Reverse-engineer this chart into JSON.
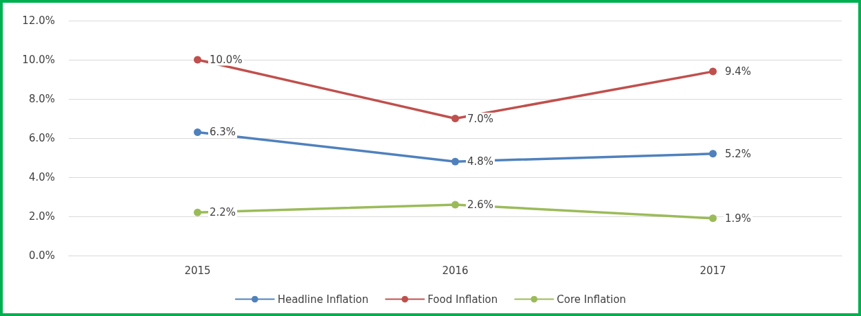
{
  "chart_data": {
    "type": "line",
    "categories": [
      "2015",
      "2016",
      "2017"
    ],
    "series": [
      {
        "name": "Headline Inflation",
        "color": "#4f81bd",
        "values": [
          6.3,
          4.8,
          5.2
        ],
        "value_labels": [
          "6.3%",
          "4.8%",
          "5.2%"
        ]
      },
      {
        "name": "Food Inflation",
        "color": "#c0504d",
        "values": [
          10.0,
          7.0,
          9.4
        ],
        "value_labels": [
          "10.0%",
          "7.0%",
          "9.4%"
        ]
      },
      {
        "name": "Core Inflation",
        "color": "#9bbb59",
        "values": [
          2.2,
          2.6,
          1.9
        ],
        "value_labels": [
          "2.2%",
          "2.6%",
          "1.9%"
        ]
      }
    ],
    "ylim": [
      0,
      12
    ],
    "yticks": [
      {
        "value": 0,
        "label": "0.0%"
      },
      {
        "value": 2,
        "label": "2.0%"
      },
      {
        "value": 4,
        "label": "4.0%"
      },
      {
        "value": 6,
        "label": "6.0%"
      },
      {
        "value": 8,
        "label": "8.0%"
      },
      {
        "value": 10,
        "label": "10.0%"
      },
      {
        "value": 12,
        "label": "12.0%"
      }
    ],
    "grid": "y",
    "legend": "bottom",
    "marker": "circle",
    "line_style": "solid"
  }
}
